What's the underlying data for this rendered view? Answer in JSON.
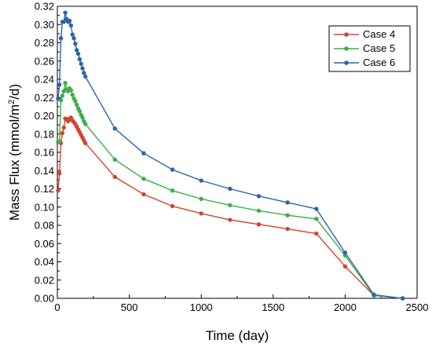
{
  "chart_data": {
    "type": "line",
    "xlabel": "Time (day)",
    "ylabel_prefix": "Mass Flux (mmol/m",
    "ylabel_sup": "2",
    "ylabel_suffix": "/d)",
    "xlim": [
      0,
      2500
    ],
    "ylim": [
      0,
      0.32
    ],
    "xticks": [
      0,
      500,
      1000,
      1500,
      2000,
      2500
    ],
    "yticks": [
      0.0,
      0.02,
      0.04,
      0.06,
      0.08,
      0.1,
      0.12,
      0.14,
      0.16,
      0.18,
      0.2,
      0.22,
      0.24,
      0.26,
      0.28,
      0.3,
      0.32
    ],
    "grid": false,
    "legend_position": "top-right",
    "series": [
      {
        "name": "Case 4",
        "color": "#d0452f",
        "points": [
          [
            5,
            0.118
          ],
          [
            15,
            0.137
          ],
          [
            25,
            0.17
          ],
          [
            35,
            0.181
          ],
          [
            45,
            0.187
          ],
          [
            55,
            0.197
          ],
          [
            65,
            0.196
          ],
          [
            75,
            0.194
          ],
          [
            85,
            0.197
          ],
          [
            95,
            0.198
          ],
          [
            105,
            0.195
          ],
          [
            115,
            0.193
          ],
          [
            125,
            0.191
          ],
          [
            135,
            0.188
          ],
          [
            145,
            0.185
          ],
          [
            155,
            0.182
          ],
          [
            165,
            0.179
          ],
          [
            175,
            0.176
          ],
          [
            185,
            0.173
          ],
          [
            195,
            0.17
          ],
          [
            400,
            0.133
          ],
          [
            600,
            0.114
          ],
          [
            800,
            0.101
          ],
          [
            1000,
            0.093
          ],
          [
            1200,
            0.086
          ],
          [
            1400,
            0.081
          ],
          [
            1600,
            0.076
          ],
          [
            1800,
            0.071
          ],
          [
            2000,
            0.035
          ],
          [
            2200,
            0.003
          ],
          [
            2400,
            0.0
          ]
        ]
      },
      {
        "name": "Case 5",
        "color": "#3fae49",
        "points": [
          [
            5,
            0.171
          ],
          [
            15,
            0.172
          ],
          [
            25,
            0.217
          ],
          [
            35,
            0.222
          ],
          [
            45,
            0.227
          ],
          [
            55,
            0.236
          ],
          [
            65,
            0.229
          ],
          [
            75,
            0.227
          ],
          [
            85,
            0.23
          ],
          [
            95,
            0.228
          ],
          [
            105,
            0.223
          ],
          [
            115,
            0.219
          ],
          [
            125,
            0.216
          ],
          [
            135,
            0.212
          ],
          [
            145,
            0.208
          ],
          [
            155,
            0.205
          ],
          [
            165,
            0.201
          ],
          [
            175,
            0.198
          ],
          [
            185,
            0.194
          ],
          [
            195,
            0.191
          ],
          [
            400,
            0.152
          ],
          [
            600,
            0.131
          ],
          [
            800,
            0.118
          ],
          [
            1000,
            0.109
          ],
          [
            1200,
            0.102
          ],
          [
            1400,
            0.096
          ],
          [
            1600,
            0.091
          ],
          [
            1800,
            0.087
          ],
          [
            2000,
            0.047
          ],
          [
            2200,
            0.003
          ],
          [
            2400,
            0.0
          ]
        ]
      },
      {
        "name": "Case 6",
        "color": "#2e63a8",
        "points": [
          [
            5,
            0.219
          ],
          [
            15,
            0.234
          ],
          [
            25,
            0.285
          ],
          [
            35,
            0.303
          ],
          [
            45,
            0.303
          ],
          [
            55,
            0.313
          ],
          [
            65,
            0.306
          ],
          [
            75,
            0.303
          ],
          [
            85,
            0.304
          ],
          [
            95,
            0.299
          ],
          [
            105,
            0.289
          ],
          [
            115,
            0.285
          ],
          [
            125,
            0.279
          ],
          [
            135,
            0.272
          ],
          [
            145,
            0.268
          ],
          [
            155,
            0.262
          ],
          [
            165,
            0.257
          ],
          [
            175,
            0.252
          ],
          [
            185,
            0.247
          ],
          [
            195,
            0.243
          ],
          [
            400,
            0.186
          ],
          [
            600,
            0.159
          ],
          [
            800,
            0.141
          ],
          [
            1000,
            0.129
          ],
          [
            1200,
            0.12
          ],
          [
            1400,
            0.112
          ],
          [
            1600,
            0.105
          ],
          [
            1800,
            0.098
          ],
          [
            2000,
            0.05
          ],
          [
            2200,
            0.004
          ],
          [
            2400,
            0.0
          ]
        ]
      }
    ]
  }
}
